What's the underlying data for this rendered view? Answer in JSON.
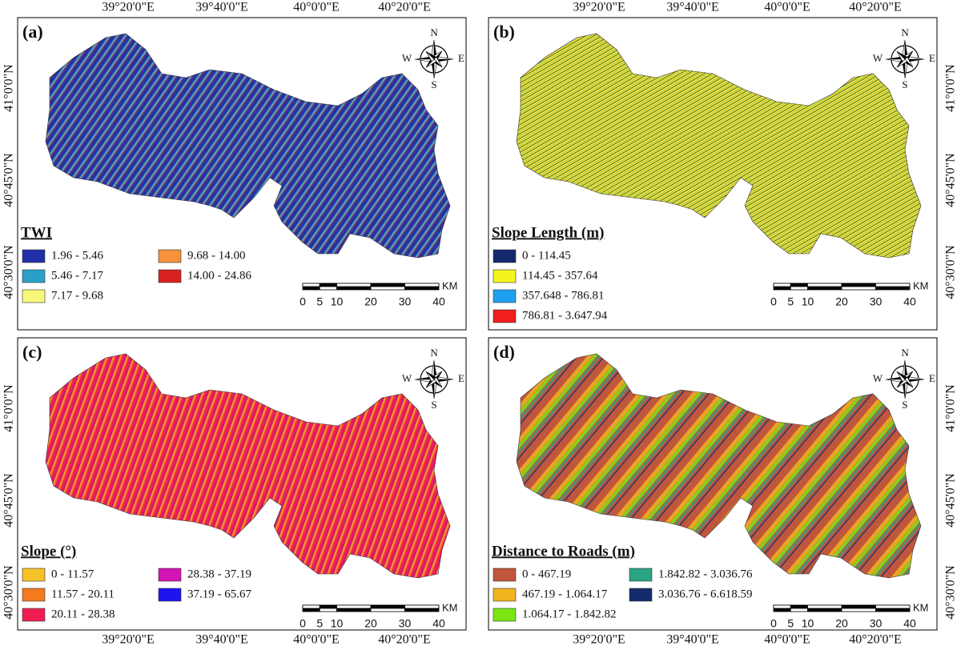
{
  "panels": [
    {
      "label": "(a)",
      "legend": {
        "title": "TWI",
        "items": [
          {
            "label": "1.96 - 5.46",
            "color": "#1f2fa8"
          },
          {
            "label": "5.46 - 7.17",
            "color": "#2aa0c8"
          },
          {
            "label": "7.17 - 9.68",
            "color": "#f7f77a"
          },
          {
            "label": "9.68 - 14.00",
            "color": "#f5923a"
          },
          {
            "label": "14.00 - 24.86",
            "color": "#d8201e"
          }
        ]
      }
    },
    {
      "label": "(b)",
      "legend": {
        "title": "Slope Length (m)",
        "items": [
          {
            "label": "0 - 114.45",
            "color": "#14286e"
          },
          {
            "label": "114.45 - 357.64",
            "color": "#f5f51e"
          },
          {
            "label": "357.648 - 786.81",
            "color": "#1ea0f0"
          },
          {
            "label": "786.81 - 3.647.94",
            "color": "#f01e1e"
          }
        ]
      }
    },
    {
      "label": "(c)",
      "legend": {
        "title": "Slope (°)",
        "items": [
          {
            "label": "0 - 11.57",
            "color": "#f5c228"
          },
          {
            "label": "11.57 - 20.11",
            "color": "#f57a1e"
          },
          {
            "label": "20.11 - 28.38",
            "color": "#f01e50"
          },
          {
            "label": "28.38 - 37.19",
            "color": "#d214b4"
          },
          {
            "label": "37.19 - 65.67",
            "color": "#1e14f0"
          }
        ]
      }
    },
    {
      "label": "(d)",
      "legend": {
        "title": "Distance to Roads (m)",
        "items": [
          {
            "label": "0 - 467.19",
            "color": "#c0563c"
          },
          {
            "label": "467.19 - 1.064.17",
            "color": "#f0b41e"
          },
          {
            "label": "1.064.17 - 1.842.82",
            "color": "#7ae614"
          },
          {
            "label": "1.842.82 - 3.036.76",
            "color": "#28a482"
          },
          {
            "label": "3.036.76 - 6.618.59",
            "color": "#142c6e"
          }
        ]
      }
    }
  ],
  "scale_bar": {
    "ticks": [
      0,
      5,
      10,
      20,
      30,
      40
    ],
    "unit": "KM"
  },
  "compass": {
    "n": "N",
    "e": "E",
    "s": "S",
    "w": "W"
  },
  "longitudes": [
    "39°20'0\"E",
    "39°40'0\"E",
    "40°0'0\"E",
    "40°20'0\"E"
  ],
  "latitudes": [
    "41°0'0\"N",
    "40°45'0\"N",
    "40°30'0\"N"
  ]
}
